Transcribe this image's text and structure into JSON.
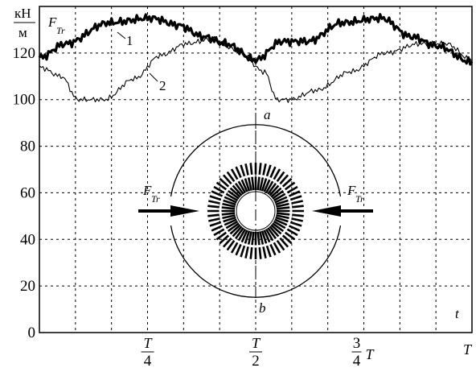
{
  "chart_data": {
    "type": "line",
    "ylabel_num": "кН",
    "ylabel_den": "м",
    "series_label_main": "F",
    "series_label_sub": "Tr",
    "xlabel": "t",
    "ylim": [
      0,
      140
    ],
    "yticks": [
      0,
      20,
      40,
      60,
      80,
      100,
      120
    ],
    "xticks": [
      {
        "key": "q",
        "num": "T",
        "den": "4"
      },
      {
        "key": "h",
        "num": "T",
        "den": "2"
      },
      {
        "key": "tq",
        "coef_num": "3",
        "coef_den": "4",
        "sym": "T"
      },
      {
        "key": "f",
        "sym": "T"
      }
    ],
    "x_unit": "T",
    "series": [
      {
        "name": "1",
        "color": "#000000",
        "x": [
          0,
          0.06,
          0.16,
          0.26,
          0.32,
          0.38,
          0.43,
          0.5,
          0.56,
          0.62,
          0.7,
          0.79,
          0.86,
          0.92,
          1.0
        ],
        "y": [
          118,
          124,
          133,
          135,
          132,
          127,
          124,
          117,
          125,
          125,
          133,
          135,
          127,
          123,
          116
        ]
      },
      {
        "name": "2",
        "color": "#000000",
        "x": [
          0,
          0.05,
          0.09,
          0.15,
          0.22,
          0.28,
          0.34,
          0.4,
          0.46,
          0.52,
          0.55,
          0.58,
          0.64,
          0.72,
          0.8,
          0.88,
          0.94,
          1.0
        ],
        "y": [
          114,
          110,
          100,
          100,
          109,
          119,
          124,
          126,
          121,
          112,
          100,
          100,
          104,
          112,
          120,
          124,
          124,
          117
        ]
      }
    ],
    "inset": {
      "label_top": "a",
      "label_bottom": "b",
      "force_main": "F",
      "force_sub": "Tr"
    }
  }
}
